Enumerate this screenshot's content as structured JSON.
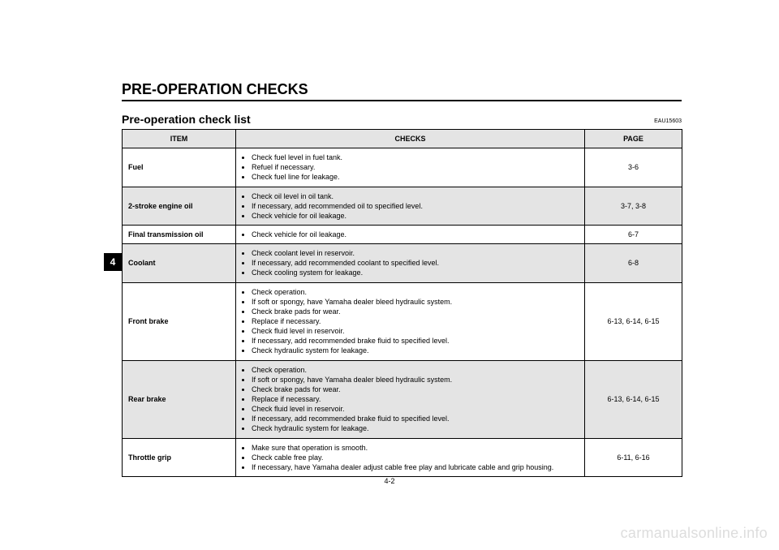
{
  "doc": {
    "section_title": "PRE-OPERATION CHECKS",
    "ref_code": "EAU15603",
    "subsection_title": "Pre-operation check list",
    "section_tab": "4",
    "page_number": "4-2",
    "watermark": "carmanualsonline.info"
  },
  "table": {
    "columns": {
      "item": "ITEM",
      "checks": "CHECKS",
      "page": "PAGE"
    },
    "header_bg": "#e4e4e4",
    "alt_row_bg": "#e4e4e4",
    "border_color": "#000000",
    "font_size_pt": 7,
    "rows": [
      {
        "item": "Fuel",
        "checks": [
          "Check fuel level in fuel tank.",
          "Refuel if necessary.",
          "Check fuel line for leakage."
        ],
        "page": "3-6",
        "shade": false
      },
      {
        "item": "2-stroke engine oil",
        "checks": [
          "Check oil level in oil tank.",
          "If necessary, add recommended oil to specified level.",
          "Check vehicle for oil leakage."
        ],
        "page": "3-7, 3-8",
        "shade": true
      },
      {
        "item": "Final transmission oil",
        "checks": [
          "Check vehicle for oil leakage."
        ],
        "page": "6-7",
        "shade": false
      },
      {
        "item": "Coolant",
        "checks": [
          "Check coolant level in reservoir.",
          "If necessary, add recommended coolant to specified level.",
          "Check cooling system for leakage."
        ],
        "page": "6-8",
        "shade": true
      },
      {
        "item": "Front brake",
        "checks": [
          "Check operation.",
          "If soft or spongy, have Yamaha dealer bleed hydraulic system.",
          "Check brake pads for wear.",
          "Replace if necessary.",
          "Check fluid level in reservoir.",
          "If necessary, add recommended brake fluid to specified level.",
          "Check hydraulic system for leakage."
        ],
        "page": "6-13, 6-14, 6-15",
        "shade": false
      },
      {
        "item": "Rear brake",
        "checks": [
          "Check operation.",
          "If soft or spongy, have Yamaha dealer bleed hydraulic system.",
          "Check brake pads for wear.",
          "Replace if necessary.",
          "Check fluid level in reservoir.",
          "If necessary, add recommended brake fluid to specified level.",
          "Check hydraulic system for leakage."
        ],
        "page": "6-13, 6-14, 6-15",
        "shade": true
      },
      {
        "item": "Throttle grip",
        "checks": [
          "Make sure that operation is smooth.",
          "Check cable free play.",
          "If necessary, have Yamaha dealer adjust cable free play and lubricate cable and grip housing."
        ],
        "page": "6-11, 6-16",
        "shade": false
      }
    ]
  }
}
